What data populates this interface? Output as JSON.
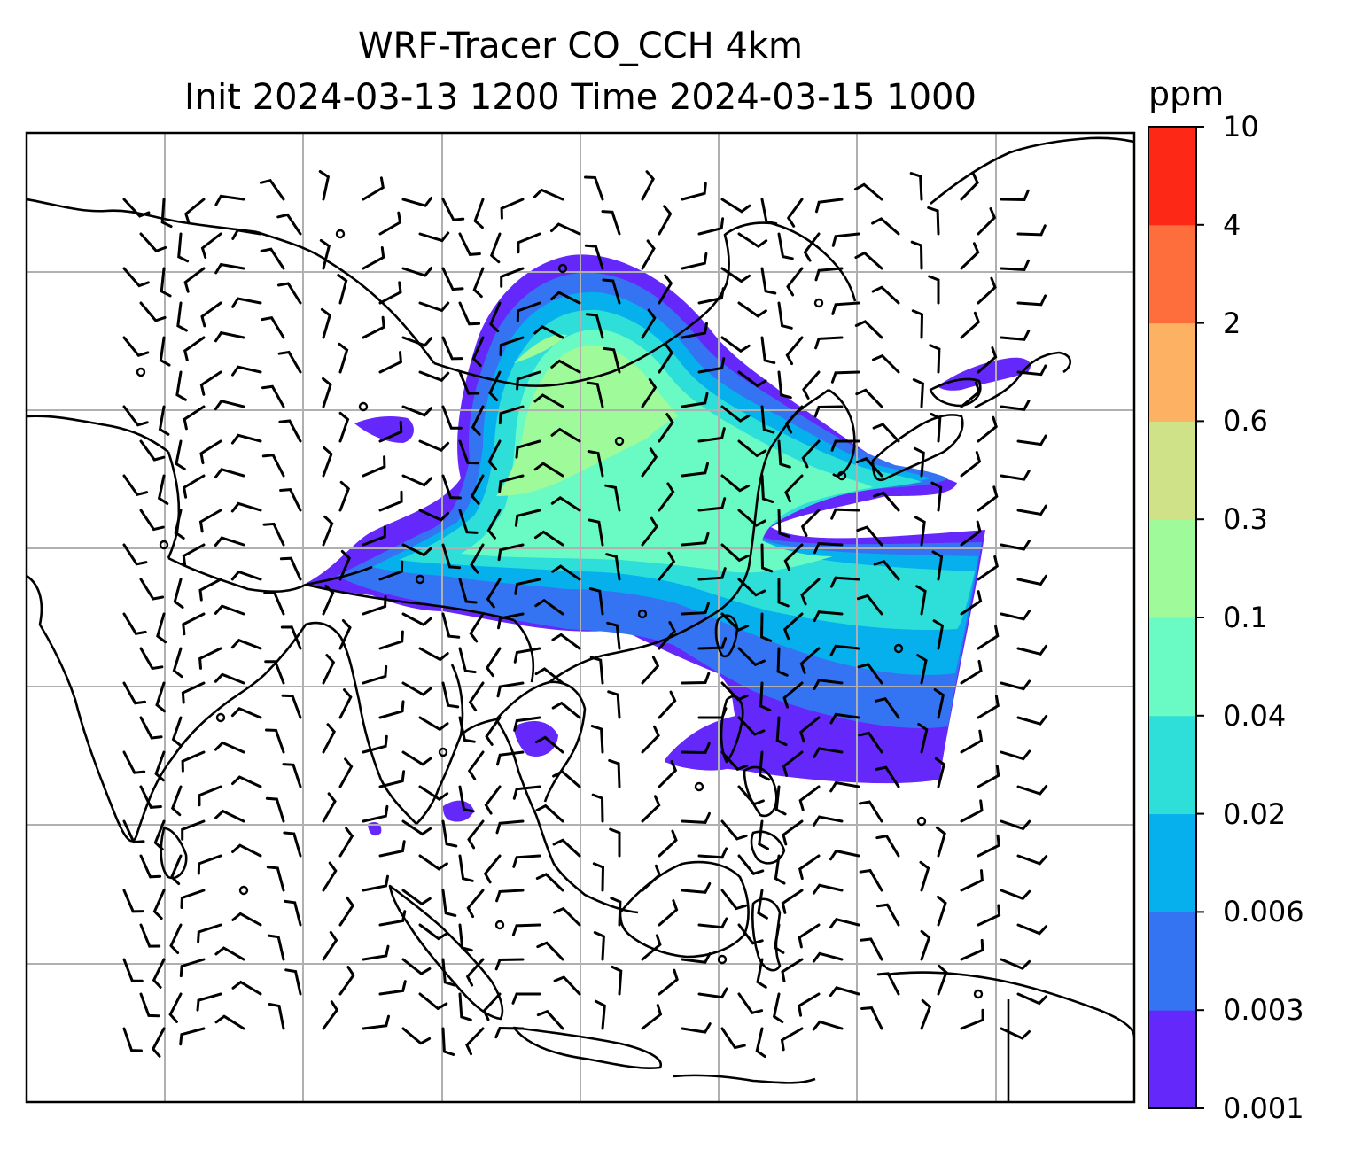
{
  "title": {
    "line1": "WRF-Tracer CO_CCH 4km",
    "line2": "Init 2024-03-13 1200 Time 2024-03-15 1000"
  },
  "colorbar": {
    "unit": "ppm",
    "levels": [
      "0.001",
      "0.003",
      "0.006",
      "0.02",
      "0.04",
      "0.1",
      "0.3",
      "0.6",
      "2",
      "4",
      "10"
    ],
    "colors": [
      "#6528fb",
      "#3474f3",
      "#06b0ec",
      "#2ddfd8",
      "#6afac4",
      "#9ffb99",
      "#cfe287",
      "#fdb162",
      "#fe6d3c",
      "#fd2916"
    ]
  },
  "palette": {
    "grid": "#b0b0b0",
    "coast": "#000000",
    "barb": "#000000"
  },
  "map_features": [
    "coastlines",
    "country-borders",
    "gridlines",
    "wind-barbs",
    "tracer-plume"
  ]
}
